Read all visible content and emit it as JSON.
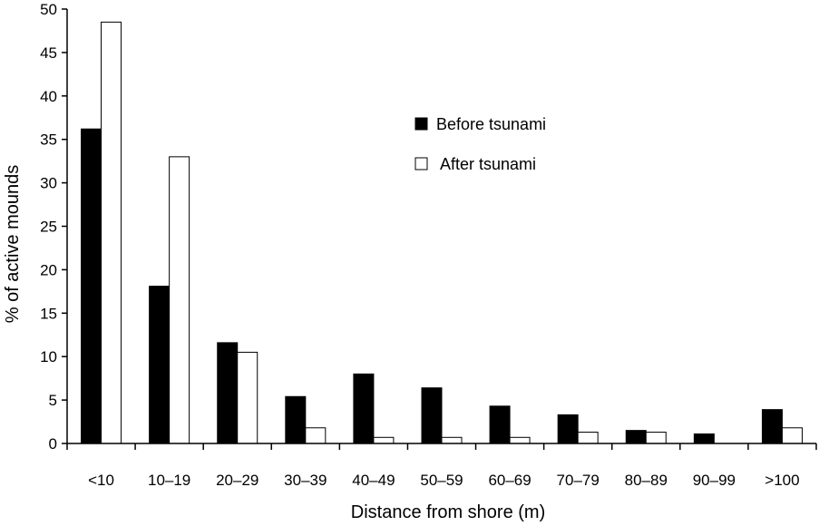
{
  "chart_data": {
    "type": "bar",
    "xlabel": "Distance from shore (m)",
    "ylabel": "% of active mounds",
    "ylim": [
      0,
      50
    ],
    "yticks": [
      0,
      5,
      10,
      15,
      20,
      25,
      30,
      35,
      40,
      45,
      50
    ],
    "categories": [
      "<10",
      "10–19",
      "20–29",
      "30–39",
      "40–49",
      "50–59",
      "60–69",
      "70–79",
      "80–89",
      "90–99",
      ">100"
    ],
    "series": [
      {
        "name": "Before tsunami",
        "color": "#000000",
        "values": [
          36.2,
          18.1,
          11.6,
          5.4,
          8.0,
          6.4,
          4.3,
          3.3,
          1.5,
          1.1,
          3.9
        ]
      },
      {
        "name": "After tsunami",
        "color": "#ffffff",
        "values": [
          48.5,
          33.0,
          10.5,
          1.8,
          0.7,
          0.7,
          0.7,
          1.3,
          1.3,
          0.0,
          1.8
        ]
      }
    ],
    "legend_position": "top-right",
    "grid": false
  }
}
